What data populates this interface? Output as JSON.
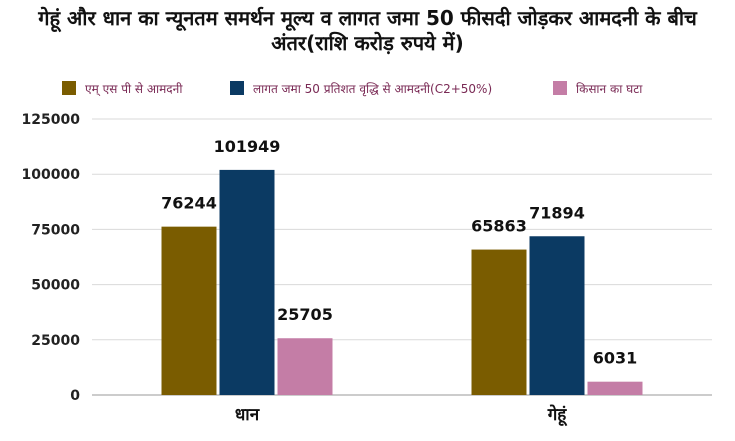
{
  "chart_data": {
    "type": "bar",
    "title": "गेहूं और धान का न्यूनतम समर्थन मूल्य व लागत जमा 50 फीसदी जोड़कर आमदनी के बीच अंतर(राशि करोड़ रुपये में)",
    "categories": [
      "धान",
      "गेहूं"
    ],
    "series": [
      {
        "name": "एम् एस पी से आमदनी",
        "color": "#7a5c00",
        "values": [
          76244,
          65863
        ],
        "labels": [
          "76244",
          "65863"
        ]
      },
      {
        "name": "लागत जमा 50 प्रतिशत वृद्धि से आमदनी(C2+50%)",
        "color": "#0b3a63",
        "values": [
          101949,
          71894
        ],
        "labels": [
          "101949",
          "71894"
        ]
      },
      {
        "name": "किसान का घटा",
        "color": "#c47da6",
        "values": [
          25705,
          6031
        ],
        "labels": [
          "25705",
          "6031"
        ]
      }
    ],
    "y_ticks": [
      "0",
      "25000",
      "50000",
      "75000",
      "100000",
      "125000"
    ],
    "ylim": [
      0,
      125000
    ],
    "xlabel": "",
    "ylabel": "",
    "grid": true,
    "legend_position": "top"
  }
}
